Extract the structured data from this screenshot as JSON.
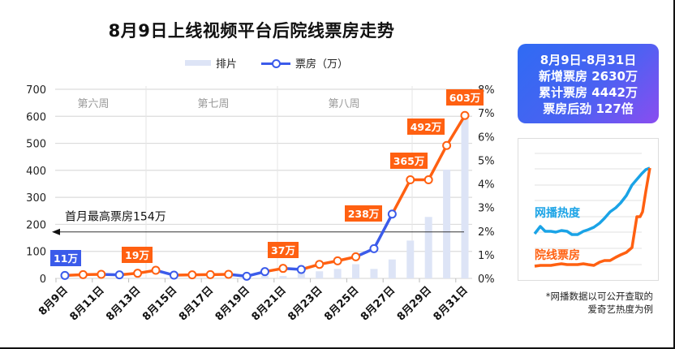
{
  "title": "8月9日上线视频平台后院线票房走势",
  "legend": {
    "bar_label": "排片",
    "line_label": "票房（万）"
  },
  "colors": {
    "blue": "#3b5bea",
    "orange": "#ff6011",
    "bar": "#dde4f6",
    "grid": "#dcdcdc",
    "mini_blue": "#1aa3e6"
  },
  "weeks": [
    "第六周",
    "第七周",
    "第八周"
  ],
  "annotation": {
    "text": "首月最高票房154万",
    "value": 154
  },
  "labels": {
    "l11": "11万",
    "l19": "19万",
    "l37": "37万",
    "l238": "238万",
    "l365": "365万",
    "l492": "492万",
    "l603": "603万"
  },
  "summary": {
    "line1": "8月9日-8月31日",
    "line2": "新增票房 2630万",
    "line3": "累计票房 4442万",
    "line4": "票房后劲 127倍"
  },
  "mini_chart": {
    "series1": "网播热度",
    "series2": "院线票房"
  },
  "note": {
    "line1": "*网播数据以可公开查取的",
    "line2": "爱奇艺热度为例"
  },
  "chart_data": {
    "type": "bar+line",
    "title": "8月9日上线视频平台后院线票房走势",
    "categories": [
      "8月9日",
      "8月10日",
      "8月11日",
      "8月12日",
      "8月13日",
      "8月14日",
      "8月15日",
      "8月16日",
      "8月17日",
      "8月18日",
      "8月19日",
      "8月20日",
      "8月21日",
      "8月22日",
      "8月23日",
      "8月24日",
      "8月25日",
      "8月26日",
      "8月27日",
      "8月28日",
      "8月29日",
      "8月30日",
      "8月31日"
    ],
    "x_tick_labels": [
      "8月9日",
      "8月11日",
      "8月13日",
      "8月15日",
      "8月17日",
      "8月19日",
      "8月21日",
      "8月23日",
      "8月25日",
      "8月27日",
      "8月29日",
      "8月31日"
    ],
    "series": [
      {
        "name": "票房（万）",
        "axis": "left",
        "type": "line",
        "values": [
          11,
          14,
          15,
          13,
          19,
          30,
          12,
          13,
          14,
          15,
          8,
          25,
          37,
          33,
          52,
          65,
          80,
          110,
          238,
          365,
          365,
          492,
          603
        ],
        "point_colors": [
          "blue",
          "orange",
          "orange",
          "blue",
          "orange",
          "orange",
          "blue",
          "orange",
          "orange",
          "orange",
          "blue",
          "blue",
          "orange",
          "blue",
          "orange",
          "orange",
          "orange",
          "blue",
          "blue",
          "orange",
          "orange",
          "orange",
          "orange"
        ]
      },
      {
        "name": "排片",
        "axis": "right",
        "type": "bar",
        "unit": "%",
        "values": [
          0,
          0,
          0,
          0,
          0,
          0,
          0,
          0,
          0,
          0,
          0,
          0.1,
          0.1,
          0.3,
          0.3,
          0.4,
          0.6,
          0.4,
          0.8,
          1.6,
          2.6,
          4.6,
          6.9
        ]
      }
    ],
    "ylabel_left": "",
    "ylim_left": [
      0,
      700
    ],
    "yticks_left": [
      0,
      100,
      200,
      300,
      400,
      500,
      600,
      700
    ],
    "ylabel_right": "",
    "ylim_right": [
      0,
      8
    ],
    "yticks_right": [
      "0%",
      "1%",
      "2%",
      "3%",
      "4%",
      "5%",
      "6%",
      "7%",
      "8%"
    ],
    "reference_line": {
      "value": 154,
      "label": "首月最高票房154万"
    },
    "data_labels": {
      "8月9日": "11万",
      "8月13日": "19万",
      "8月21日": "37万",
      "8月27日": "238万",
      "8月28日": "365万",
      "8月30日": "492万",
      "8月31日": "603万"
    },
    "week_bands": [
      {
        "label": "第六周"
      },
      {
        "label": "第七周"
      },
      {
        "label": "第八周"
      }
    ],
    "grid": true,
    "legend_position": "top"
  }
}
